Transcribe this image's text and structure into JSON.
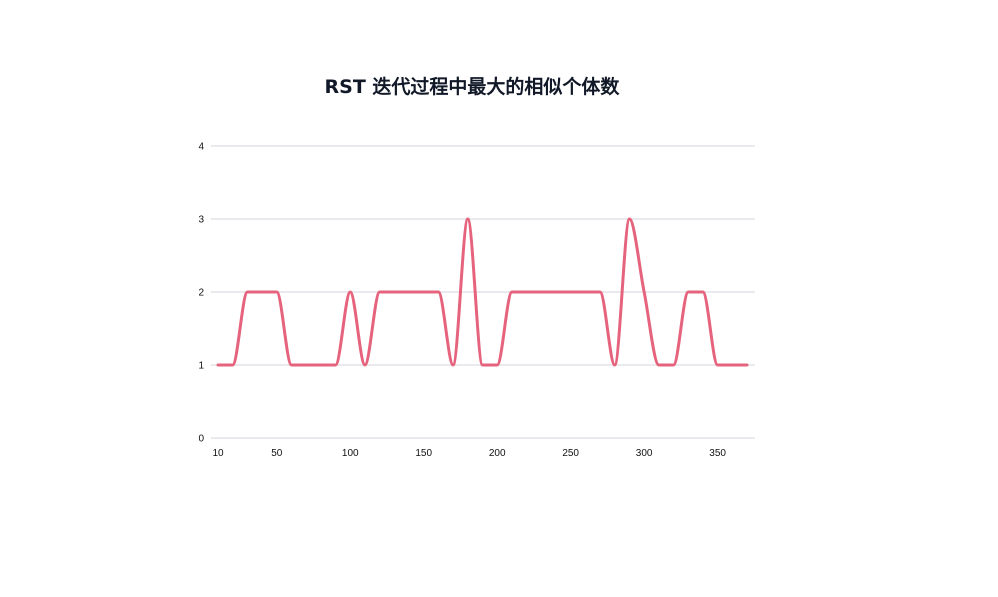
{
  "chart_data": {
    "type": "line",
    "title": "RST 迭代过程中最大的相似个体数",
    "xlabel": "",
    "ylabel": "",
    "x": [
      10,
      20,
      30,
      40,
      50,
      60,
      70,
      80,
      90,
      100,
      110,
      120,
      130,
      140,
      150,
      160,
      170,
      180,
      190,
      200,
      210,
      220,
      230,
      240,
      250,
      260,
      270,
      280,
      290,
      300,
      310,
      320,
      330,
      340,
      350,
      360,
      370
    ],
    "series": [
      {
        "name": "",
        "values": [
          1,
          1,
          2,
          2,
          2,
          1,
          1,
          1,
          1,
          2,
          1,
          2,
          2,
          2,
          2,
          2,
          1,
          3,
          1,
          1,
          2,
          2,
          2,
          2,
          2,
          2,
          2,
          1,
          3,
          2,
          1,
          1,
          2,
          2,
          1,
          1,
          1
        ],
        "color": "#e5637d"
      }
    ],
    "xlim": [
      10,
      370
    ],
    "ylim": [
      0,
      4
    ],
    "yticks": [
      "0",
      "1",
      "2",
      "3",
      "4"
    ],
    "xticks": [
      "10",
      "50",
      "100",
      "150",
      "200",
      "250",
      "300",
      "350"
    ],
    "grid": "horizontal",
    "legend": "none"
  }
}
